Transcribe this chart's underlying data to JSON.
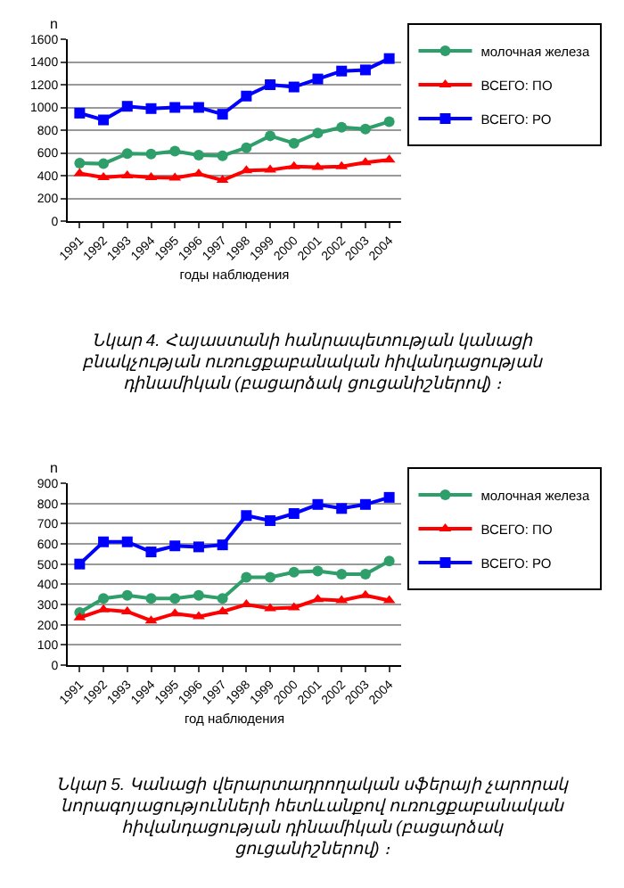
{
  "chart_data": [
    {
      "type": "line",
      "ylabel": "n",
      "xlabel": "годы наблюдения",
      "categories": [
        "1991",
        "1992",
        "1993",
        "1994",
        "1995",
        "1996",
        "1997",
        "1998",
        "1999",
        "2000",
        "2001",
        "2002",
        "2003",
        "2004"
      ],
      "ylim": [
        0,
        1600
      ],
      "yticks": [
        0,
        200,
        400,
        600,
        800,
        1000,
        1200,
        1400,
        1600
      ],
      "grid": "y",
      "legend": "right",
      "annotations": [
        "Նկար 4. Հայաստանի հանրապետության կանացի բնակչության ուռուցքաբանական հիվանդացության դինամիկան (բացարձակ ցուցանիշներով) ։"
      ],
      "series": [
        {
          "name": "молочная железа",
          "color": "#2e9e6a",
          "marker": "circle",
          "values": [
            510,
            505,
            595,
            590,
            615,
            580,
            575,
            645,
            750,
            685,
            775,
            825,
            810,
            875
          ]
        },
        {
          "name": "ВСЕГО: ПО",
          "color": "#ff0000",
          "marker": "triangle",
          "values": [
            420,
            385,
            400,
            385,
            380,
            415,
            360,
            445,
            450,
            480,
            475,
            480,
            515,
            540
          ]
        },
        {
          "name": "ВСЕГО: РО",
          "color": "#0000ff",
          "marker": "square",
          "values": [
            950,
            890,
            1010,
            990,
            1000,
            1000,
            940,
            1100,
            1200,
            1180,
            1250,
            1320,
            1330,
            1430
          ]
        }
      ]
    },
    {
      "type": "line",
      "ylabel": "n",
      "xlabel": "год наблюдения",
      "categories": [
        "1991",
        "1992",
        "1993",
        "1994",
        "1995",
        "1996",
        "1997",
        "1998",
        "1999",
        "2000",
        "2001",
        "2002",
        "2003",
        "2004"
      ],
      "ylim": [
        0,
        900
      ],
      "yticks": [
        0,
        100,
        200,
        300,
        400,
        500,
        600,
        700,
        800,
        900
      ],
      "grid": "y",
      "legend": "right",
      "annotations": [
        "Նկար 5. Կանացի վերարտադրողական սֆերայի չարորակ նորագոյացությունների հետևանքով ուռուցքաբանական հիվանդացության դինամիկան (բացարձակ ցուցանիշներով) ։"
      ],
      "series": [
        {
          "name": "молочная железа",
          "color": "#2e9e6a",
          "marker": "circle",
          "values": [
            260,
            330,
            345,
            330,
            330,
            345,
            330,
            435,
            435,
            460,
            465,
            450,
            450,
            515
          ]
        },
        {
          "name": "ВСЕГО: ПО",
          "color": "#ff0000",
          "marker": "triangle",
          "values": [
            235,
            275,
            265,
            220,
            255,
            240,
            265,
            300,
            280,
            285,
            325,
            320,
            345,
            320
          ]
        },
        {
          "name": "ВСЕГО: РО",
          "color": "#0000ff",
          "marker": "square",
          "values": [
            500,
            610,
            610,
            560,
            590,
            585,
            595,
            740,
            715,
            750,
            795,
            775,
            795,
            830
          ]
        }
      ]
    }
  ]
}
